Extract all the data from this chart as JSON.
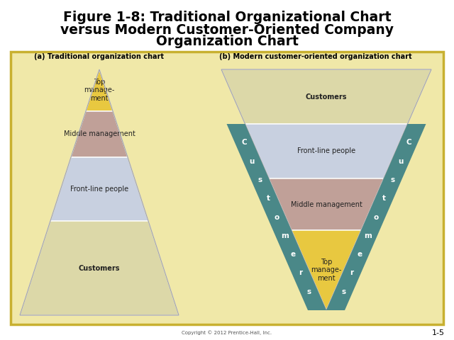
{
  "title_line1": "Figure 1-8: Traditional Organizational Chart",
  "title_line2": "versus Modern Customer-Oriented Company",
  "title_line3": "Organization Chart",
  "subtitle_a": "(a) Traditional organization chart",
  "subtitle_b": "(b) Modern customer-oriented organization chart",
  "bg_outer": "#ffffff",
  "bg_inner": "#f0e8a8",
  "border_color": "#c8b030",
  "trad_layers": [
    {
      "label": "Top\nmanage-\nment",
      "color": "#e8c840",
      "bold": false
    },
    {
      "label": "Middle management",
      "color": "#c0a098",
      "bold": false
    },
    {
      "label": "Front-line people",
      "color": "#c8d0e0",
      "bold": false
    },
    {
      "label": "Customers",
      "color": "#dcd8a8",
      "bold": true
    }
  ],
  "mod_layers": [
    {
      "label": "Customers",
      "color": "#dcd8a8",
      "bold": true
    },
    {
      "label": "Front-line people",
      "color": "#c8d0e0",
      "bold": false
    },
    {
      "label": "Middle management",
      "color": "#c0a098",
      "bold": false
    },
    {
      "label": "Top\nmanage-\nment",
      "color": "#e8c840",
      "bold": false
    }
  ],
  "side_bar_color": "#4a8888",
  "copyright": "Copyright © 2012 Prentice-Hall, Inc.",
  "slide_num": "1-5",
  "title_fontsize": 13.5,
  "subtitle_fontsize": 7,
  "label_fontsize": 7,
  "side_text_fontsize": 7.5
}
